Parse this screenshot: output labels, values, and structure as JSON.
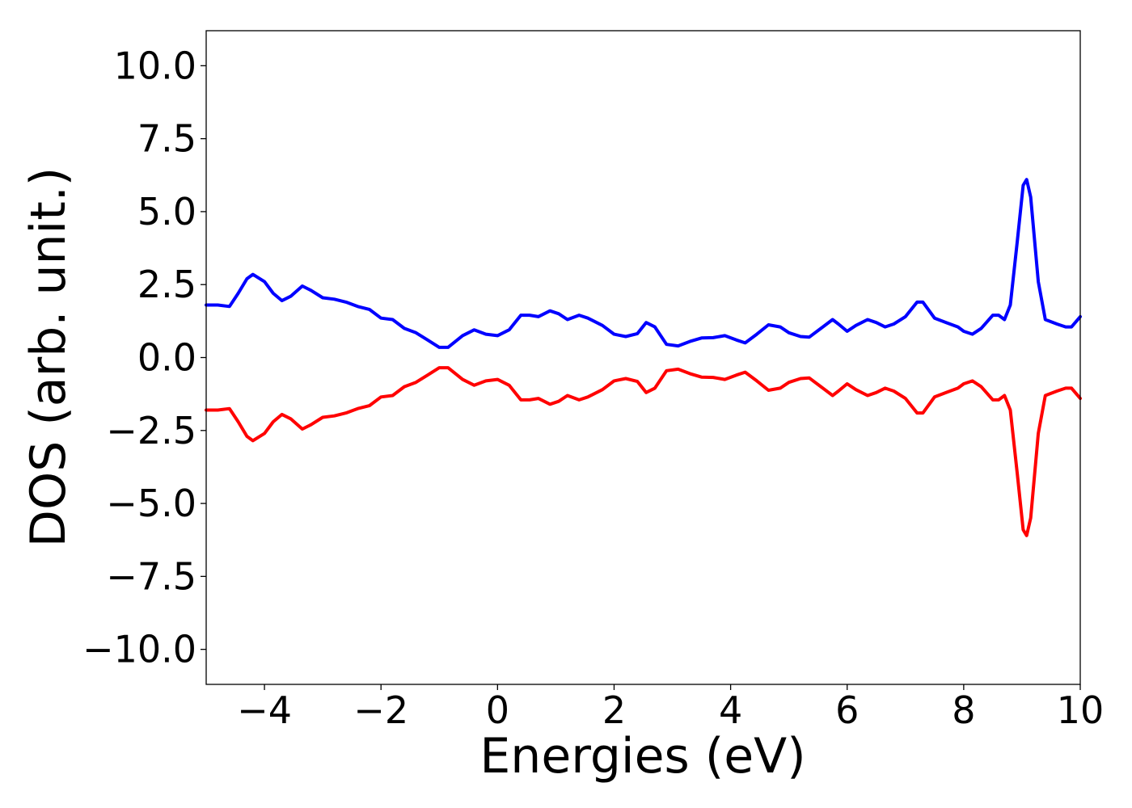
{
  "chart_data": {
    "type": "line",
    "xlabel": "Energies (eV)",
    "ylabel": "DOS (arb. unit.)",
    "xlim": [
      -5,
      10
    ],
    "ylim": [
      -11.2,
      11.2
    ],
    "x_ticks": [
      -4,
      -2,
      0,
      2,
      4,
      6,
      8,
      10
    ],
    "x_tick_labels": [
      "−4",
      "−2",
      "0",
      "2",
      "4",
      "6",
      "8",
      "10"
    ],
    "y_ticks": [
      10,
      7.5,
      5,
      2.5,
      0,
      -2.5,
      -5,
      -7.5,
      -10
    ],
    "y_tick_labels": [
      "10.0",
      "7.5",
      "5.0",
      "2.5",
      "0.0",
      "−2.5",
      "−5.0",
      "−7.5",
      "−10.0"
    ],
    "grid": false,
    "series": [
      {
        "color": "#0000ff",
        "points": [
          [
            -5.0,
            1.8
          ],
          [
            -4.8,
            1.8
          ],
          [
            -4.6,
            1.75
          ],
          [
            -4.45,
            2.2
          ],
          [
            -4.3,
            2.7
          ],
          [
            -4.2,
            2.85
          ],
          [
            -4.0,
            2.6
          ],
          [
            -3.85,
            2.2
          ],
          [
            -3.7,
            1.95
          ],
          [
            -3.55,
            2.1
          ],
          [
            -3.35,
            2.45
          ],
          [
            -3.2,
            2.3
          ],
          [
            -3.0,
            2.05
          ],
          [
            -2.8,
            2.0
          ],
          [
            -2.6,
            1.9
          ],
          [
            -2.4,
            1.75
          ],
          [
            -2.2,
            1.65
          ],
          [
            -2.0,
            1.35
          ],
          [
            -1.8,
            1.3
          ],
          [
            -1.6,
            1.0
          ],
          [
            -1.4,
            0.85
          ],
          [
            -1.2,
            0.6
          ],
          [
            -1.0,
            0.35
          ],
          [
            -0.85,
            0.35
          ],
          [
            -0.6,
            0.75
          ],
          [
            -0.4,
            0.95
          ],
          [
            -0.2,
            0.8
          ],
          [
            0.0,
            0.75
          ],
          [
            0.2,
            0.95
          ],
          [
            0.4,
            1.45
          ],
          [
            0.55,
            1.45
          ],
          [
            0.7,
            1.4
          ],
          [
            0.9,
            1.6
          ],
          [
            1.05,
            1.5
          ],
          [
            1.2,
            1.3
          ],
          [
            1.4,
            1.45
          ],
          [
            1.55,
            1.35
          ],
          [
            1.8,
            1.1
          ],
          [
            2.0,
            0.8
          ],
          [
            2.2,
            0.72
          ],
          [
            2.4,
            0.82
          ],
          [
            2.55,
            1.2
          ],
          [
            2.7,
            1.05
          ],
          [
            2.9,
            0.45
          ],
          [
            3.1,
            0.4
          ],
          [
            3.3,
            0.55
          ],
          [
            3.5,
            0.67
          ],
          [
            3.7,
            0.68
          ],
          [
            3.9,
            0.75
          ],
          [
            4.1,
            0.6
          ],
          [
            4.25,
            0.5
          ],
          [
            4.45,
            0.8
          ],
          [
            4.65,
            1.12
          ],
          [
            4.85,
            1.05
          ],
          [
            5.0,
            0.85
          ],
          [
            5.2,
            0.72
          ],
          [
            5.35,
            0.7
          ],
          [
            5.55,
            1.0
          ],
          [
            5.75,
            1.3
          ],
          [
            5.85,
            1.15
          ],
          [
            6.0,
            0.9
          ],
          [
            6.15,
            1.1
          ],
          [
            6.35,
            1.3
          ],
          [
            6.5,
            1.2
          ],
          [
            6.65,
            1.05
          ],
          [
            6.8,
            1.15
          ],
          [
            7.0,
            1.4
          ],
          [
            7.2,
            1.9
          ],
          [
            7.3,
            1.9
          ],
          [
            7.5,
            1.35
          ],
          [
            7.7,
            1.2
          ],
          [
            7.9,
            1.05
          ],
          [
            8.0,
            0.9
          ],
          [
            8.15,
            0.8
          ],
          [
            8.3,
            1.0
          ],
          [
            8.5,
            1.45
          ],
          [
            8.6,
            1.45
          ],
          [
            8.7,
            1.3
          ],
          [
            8.8,
            1.8
          ],
          [
            8.92,
            4.0
          ],
          [
            9.02,
            5.9
          ],
          [
            9.08,
            6.1
          ],
          [
            9.15,
            5.5
          ],
          [
            9.28,
            2.6
          ],
          [
            9.4,
            1.3
          ],
          [
            9.6,
            1.15
          ],
          [
            9.75,
            1.05
          ],
          [
            9.85,
            1.05
          ],
          [
            10.0,
            1.4
          ]
        ]
      },
      {
        "color": "#ff0000",
        "points": [
          [
            -5.0,
            -1.8
          ],
          [
            -4.8,
            -1.8
          ],
          [
            -4.6,
            -1.75
          ],
          [
            -4.45,
            -2.2
          ],
          [
            -4.3,
            -2.7
          ],
          [
            -4.2,
            -2.85
          ],
          [
            -4.0,
            -2.6
          ],
          [
            -3.85,
            -2.2
          ],
          [
            -3.7,
            -1.95
          ],
          [
            -3.55,
            -2.1
          ],
          [
            -3.35,
            -2.45
          ],
          [
            -3.2,
            -2.3
          ],
          [
            -3.0,
            -2.05
          ],
          [
            -2.8,
            -2.0
          ],
          [
            -2.6,
            -1.9
          ],
          [
            -2.4,
            -1.75
          ],
          [
            -2.2,
            -1.65
          ],
          [
            -2.0,
            -1.35
          ],
          [
            -1.8,
            -1.3
          ],
          [
            -1.6,
            -1.0
          ],
          [
            -1.4,
            -0.85
          ],
          [
            -1.2,
            -0.6
          ],
          [
            -1.0,
            -0.35
          ],
          [
            -0.85,
            -0.35
          ],
          [
            -0.6,
            -0.75
          ],
          [
            -0.4,
            -0.95
          ],
          [
            -0.2,
            -0.8
          ],
          [
            0.0,
            -0.75
          ],
          [
            0.2,
            -0.95
          ],
          [
            0.4,
            -1.45
          ],
          [
            0.55,
            -1.45
          ],
          [
            0.7,
            -1.4
          ],
          [
            0.9,
            -1.6
          ],
          [
            1.05,
            -1.5
          ],
          [
            1.2,
            -1.3
          ],
          [
            1.4,
            -1.45
          ],
          [
            1.55,
            -1.35
          ],
          [
            1.8,
            -1.1
          ],
          [
            2.0,
            -0.8
          ],
          [
            2.2,
            -0.72
          ],
          [
            2.4,
            -0.82
          ],
          [
            2.55,
            -1.2
          ],
          [
            2.7,
            -1.05
          ],
          [
            2.9,
            -0.45
          ],
          [
            3.1,
            -0.4
          ],
          [
            3.3,
            -0.55
          ],
          [
            3.5,
            -0.67
          ],
          [
            3.7,
            -0.68
          ],
          [
            3.9,
            -0.75
          ],
          [
            4.1,
            -0.6
          ],
          [
            4.25,
            -0.5
          ],
          [
            4.45,
            -0.8
          ],
          [
            4.65,
            -1.12
          ],
          [
            4.85,
            -1.05
          ],
          [
            5.0,
            -0.85
          ],
          [
            5.2,
            -0.72
          ],
          [
            5.35,
            -0.7
          ],
          [
            5.55,
            -1.0
          ],
          [
            5.75,
            -1.3
          ],
          [
            5.85,
            -1.15
          ],
          [
            6.0,
            -0.9
          ],
          [
            6.15,
            -1.1
          ],
          [
            6.35,
            -1.3
          ],
          [
            6.5,
            -1.2
          ],
          [
            6.65,
            -1.05
          ],
          [
            6.8,
            -1.15
          ],
          [
            7.0,
            -1.4
          ],
          [
            7.2,
            -1.9
          ],
          [
            7.3,
            -1.9
          ],
          [
            7.5,
            -1.35
          ],
          [
            7.7,
            -1.2
          ],
          [
            7.9,
            -1.05
          ],
          [
            8.0,
            -0.9
          ],
          [
            8.15,
            -0.8
          ],
          [
            8.3,
            -1.0
          ],
          [
            8.5,
            -1.45
          ],
          [
            8.6,
            -1.45
          ],
          [
            8.7,
            -1.3
          ],
          [
            8.8,
            -1.8
          ],
          [
            8.92,
            -4.0
          ],
          [
            9.02,
            -5.9
          ],
          [
            9.08,
            -6.1
          ],
          [
            9.15,
            -5.5
          ],
          [
            9.28,
            -2.6
          ],
          [
            9.4,
            -1.3
          ],
          [
            9.6,
            -1.15
          ],
          [
            9.75,
            -1.05
          ],
          [
            9.85,
            -1.05
          ],
          [
            10.0,
            -1.4
          ]
        ]
      }
    ]
  }
}
